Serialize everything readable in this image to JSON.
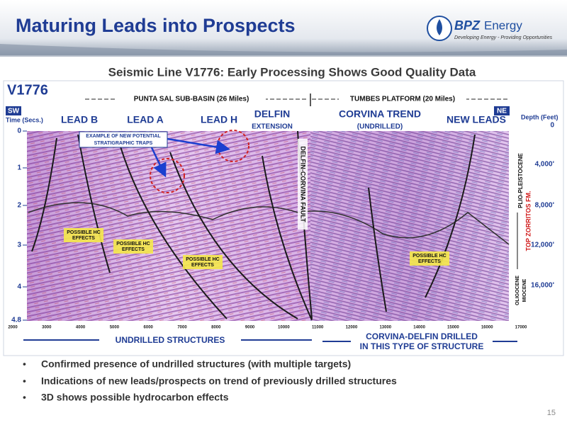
{
  "header": {
    "title": "Maturing Leads into Prospects",
    "logo": {
      "brand": "BPZ",
      "name": "Energy",
      "tagline": "Developing Energy - Providing Opportunities"
    }
  },
  "subtitle": "Seismic Line V1776: Early Processing Shows Good Quality Data",
  "figure": {
    "line_name": "V1776",
    "basins": [
      "PUNTA SAL SUB-BASIN (26 Miles)",
      "TUMBES PLATFORM (20 Miles)"
    ],
    "directions": [
      "SW",
      "NE"
    ],
    "time_axis": {
      "label": "Time (Secs.)",
      "ticks": [
        "0",
        "1",
        "2",
        "3",
        "4",
        "4.8"
      ]
    },
    "depth_axis": {
      "label": "Depth (Feet)",
      "ticks": [
        "0",
        "4,000'",
        "8,000'",
        "12,000'",
        "16,000'"
      ]
    },
    "x_ticks": [
      "2000",
      "3000",
      "4000",
      "5000",
      "6000",
      "7000",
      "8000",
      "9000",
      "10000",
      "11000",
      "12000",
      "13000",
      "14000",
      "15000",
      "16000",
      "17000"
    ],
    "leads": [
      "LEAD B",
      "LEAD A",
      "LEAD H"
    ],
    "delfin": [
      "DELFIN",
      "EXTENSION"
    ],
    "corvina": [
      "CORVINA TREND",
      "(UNDRILLED)"
    ],
    "new_leads": "NEW LEADS",
    "traps_note": [
      "EXAMPLE OF NEW POTENTIAL",
      "STRATIGRAPHIC TRAPS"
    ],
    "fault": "DELFIN-CORVINA  FAULT",
    "hc_effects": [
      [
        "POSSIBLE HC",
        "EFFECTS"
      ],
      [
        "POSSIBLE HC",
        "EFFECTS"
      ],
      [
        "POSSIBLE HC",
        "EFFECTS"
      ],
      [
        "POSSIBLE HC",
        "EFFECTS"
      ]
    ],
    "formations": [
      "PLIO-PLEISTOCENE",
      "TOP ZORRITOS FM.",
      "OLIGOCENE",
      "MIOCENE"
    ],
    "bottom_labels": [
      "UNDRILLED STRUCTURES",
      "CORVINA-DELFIN DRILLED",
      "IN THIS TYPE OF STRUCTURE"
    ]
  },
  "bullets": [
    "Confirmed presence of undrilled structures (with multiple targets)",
    "Indications of new leads/prospects on trend of previously drilled structures",
    "3D shows possible hydrocarbon effects"
  ],
  "page_number": "15"
}
